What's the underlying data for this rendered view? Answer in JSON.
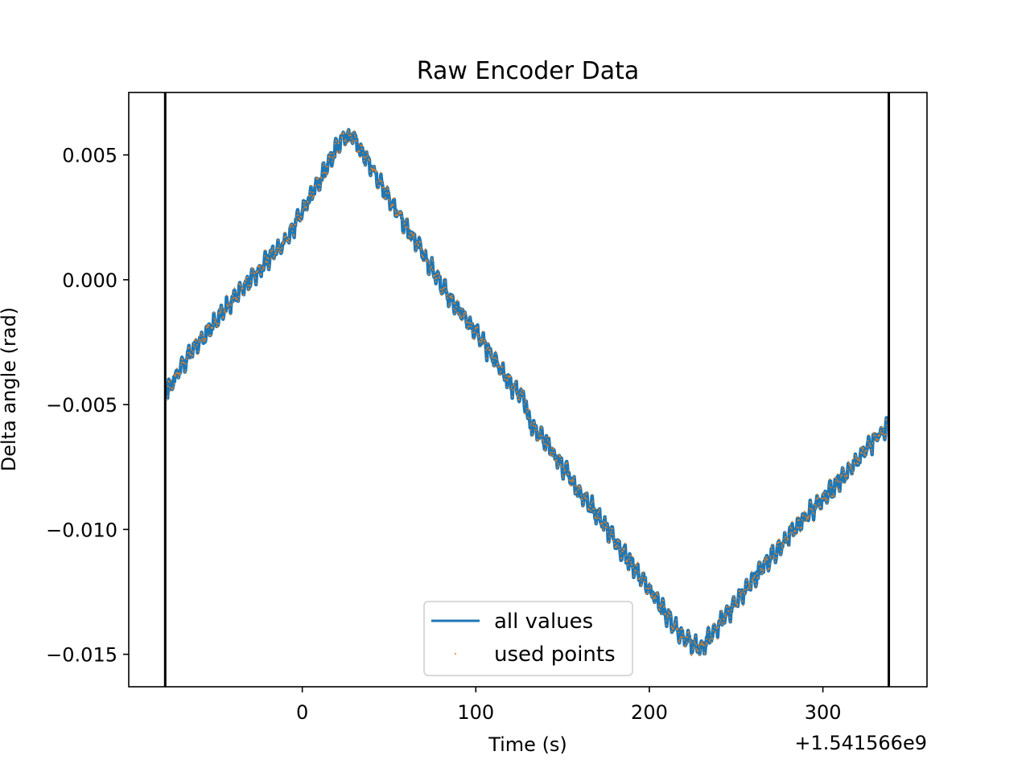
{
  "chart_data": {
    "type": "line",
    "title": "Raw Encoder Data",
    "xlabel": "Time (s)",
    "ylabel": "Delta angle (rad)",
    "x_offset_label": "+1.541566e9",
    "xlim": [
      -100,
      360
    ],
    "ylim": [
      -0.0163,
      0.0075
    ],
    "x_ticks": [
      0,
      100,
      200,
      300
    ],
    "x_tick_labels": [
      "0",
      "100",
      "200",
      "300"
    ],
    "y_ticks": [
      0.005,
      0.0,
      -0.005,
      -0.01,
      -0.015
    ],
    "y_tick_labels": [
      "0.005",
      "0.000",
      "−0.005",
      "−0.010",
      "−0.015"
    ],
    "vertical_lines": [
      -79,
      338
    ],
    "grid": false,
    "legend_position": "lower-center",
    "series": [
      {
        "name": "all values",
        "color": "#1f77b4",
        "style": "line",
        "x": [
          -78,
          -70,
          -60,
          -50,
          -40,
          -30,
          -20,
          -10,
          0,
          10,
          20,
          25,
          30,
          40,
          50,
          60,
          70,
          80,
          90,
          100,
          110,
          120,
          129,
          130,
          140,
          150,
          160,
          170,
          180,
          190,
          200,
          210,
          220,
          230,
          240,
          250,
          260,
          270,
          280,
          290,
          300,
          310,
          320,
          330,
          337
        ],
        "y": [
          -0.0046,
          -0.0035,
          -0.0025,
          -0.0017,
          -0.0008,
          0.0,
          0.0008,
          0.0015,
          0.0027,
          0.004,
          0.0053,
          0.0058,
          0.0056,
          0.0045,
          0.0033,
          0.0021,
          0.001,
          -0.0002,
          -0.0012,
          -0.0021,
          -0.0031,
          -0.0042,
          -0.0049,
          -0.0056,
          -0.0065,
          -0.0075,
          -0.0085,
          -0.0094,
          -0.0104,
          -0.0114,
          -0.0124,
          -0.0134,
          -0.0144,
          -0.0148,
          -0.0138,
          -0.0129,
          -0.012,
          -0.0111,
          -0.0103,
          -0.0095,
          -0.0088,
          -0.008,
          -0.0072,
          -0.0064,
          -0.0058
        ]
      },
      {
        "name": "used points",
        "color": "#ff7f0e",
        "style": "points"
      }
    ]
  }
}
